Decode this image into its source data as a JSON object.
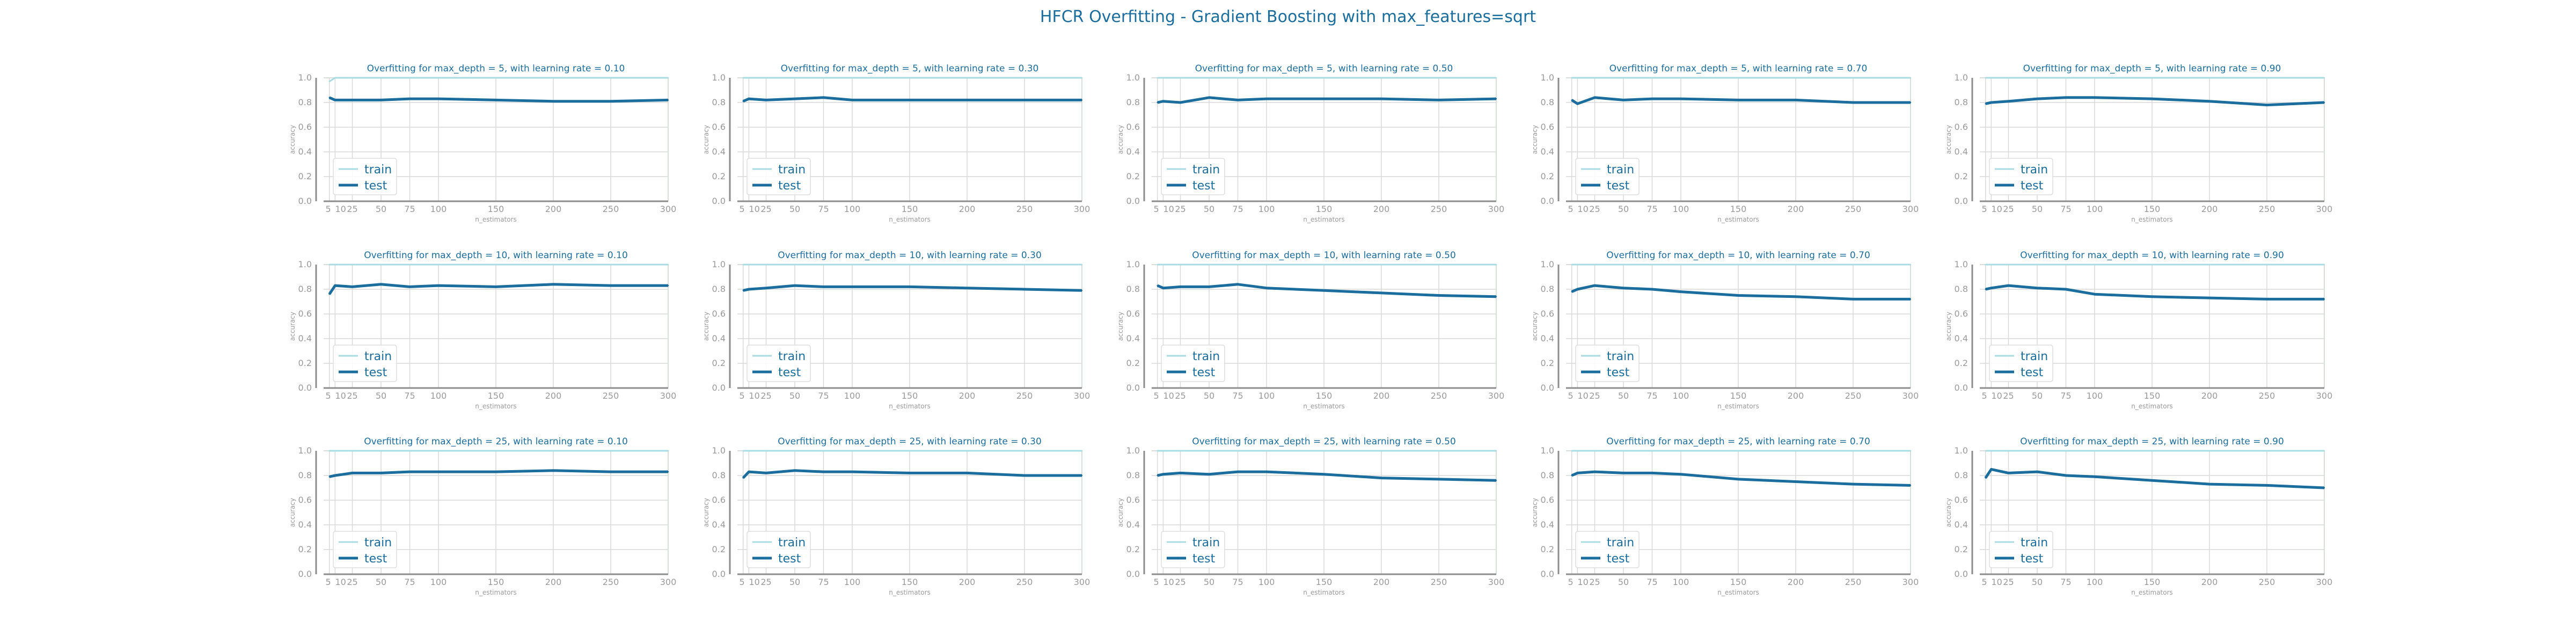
{
  "title": "HFCR Overfitting - Gradient Boosting with max_features=sqrt",
  "colors": {
    "train": "#a9dbe3",
    "test": "#1a6d9c",
    "title": "#1a6d9c",
    "grid": "#d9d9d9",
    "axis": "#8c8c8c",
    "frame": "#a8dba8"
  },
  "chart_data": [
    {
      "type": "line",
      "title": "Overfitting for max_depth = 5, with learning rate = 0.10",
      "xlabel": "n_estimators",
      "ylabel": "accuracy",
      "ylim": [
        0,
        1
      ],
      "x": [
        5,
        10,
        25,
        50,
        75,
        100,
        150,
        200,
        250,
        300
      ],
      "xticks": [
        5,
        10,
        25,
        50,
        75,
        100,
        150,
        200,
        250,
        300
      ],
      "yticks": [
        0.0,
        0.2,
        0.4,
        0.6,
        0.8,
        1.0
      ],
      "grid": true,
      "legend": "lower-left",
      "series": [
        {
          "name": "train",
          "values": [
            0.97,
            1.0,
            1.0,
            1.0,
            1.0,
            1.0,
            1.0,
            1.0,
            1.0,
            1.0
          ]
        },
        {
          "name": "test",
          "values": [
            0.84,
            0.82,
            0.82,
            0.82,
            0.83,
            0.83,
            0.82,
            0.81,
            0.81,
            0.82
          ]
        }
      ]
    },
    {
      "type": "line",
      "title": "Overfitting for max_depth = 5, with learning rate = 0.30",
      "xlabel": "n_estimators",
      "ylabel": "accuracy",
      "ylim": [
        0,
        1
      ],
      "x": [
        5,
        10,
        25,
        50,
        75,
        100,
        150,
        200,
        250,
        300
      ],
      "xticks": [
        5,
        10,
        25,
        50,
        75,
        100,
        150,
        200,
        250,
        300
      ],
      "yticks": [
        0.0,
        0.2,
        0.4,
        0.6,
        0.8,
        1.0
      ],
      "grid": true,
      "legend": "lower-left",
      "series": [
        {
          "name": "train",
          "values": [
            1.0,
            1.0,
            1.0,
            1.0,
            1.0,
            1.0,
            1.0,
            1.0,
            1.0,
            1.0
          ]
        },
        {
          "name": "test",
          "values": [
            0.81,
            0.83,
            0.82,
            0.83,
            0.84,
            0.82,
            0.82,
            0.82,
            0.82,
            0.82
          ]
        }
      ]
    },
    {
      "type": "line",
      "title": "Overfitting for max_depth = 5, with learning rate = 0.50",
      "xlabel": "n_estimators",
      "ylabel": "accuracy",
      "ylim": [
        0,
        1
      ],
      "x": [
        5,
        10,
        25,
        50,
        75,
        100,
        150,
        200,
        250,
        300
      ],
      "xticks": [
        5,
        10,
        25,
        50,
        75,
        100,
        150,
        200,
        250,
        300
      ],
      "yticks": [
        0.0,
        0.2,
        0.4,
        0.6,
        0.8,
        1.0
      ],
      "grid": true,
      "legend": "lower-left",
      "series": [
        {
          "name": "train",
          "values": [
            1.0,
            1.0,
            1.0,
            1.0,
            1.0,
            1.0,
            1.0,
            1.0,
            1.0,
            1.0
          ]
        },
        {
          "name": "test",
          "values": [
            0.8,
            0.81,
            0.8,
            0.84,
            0.82,
            0.83,
            0.83,
            0.83,
            0.82,
            0.83
          ]
        }
      ]
    },
    {
      "type": "line",
      "title": "Overfitting for max_depth = 5, with learning rate = 0.70",
      "xlabel": "n_estimators",
      "ylabel": "accuracy",
      "ylim": [
        0,
        1
      ],
      "x": [
        5,
        10,
        25,
        50,
        75,
        100,
        150,
        200,
        250,
        300
      ],
      "xticks": [
        5,
        10,
        25,
        50,
        75,
        100,
        150,
        200,
        250,
        300
      ],
      "yticks": [
        0.0,
        0.2,
        0.4,
        0.6,
        0.8,
        1.0
      ],
      "grid": true,
      "legend": "lower-left",
      "series": [
        {
          "name": "train",
          "values": [
            1.0,
            1.0,
            1.0,
            1.0,
            1.0,
            1.0,
            1.0,
            1.0,
            1.0,
            1.0
          ]
        },
        {
          "name": "test",
          "values": [
            0.82,
            0.79,
            0.84,
            0.82,
            0.83,
            0.83,
            0.82,
            0.82,
            0.8,
            0.8
          ]
        }
      ]
    },
    {
      "type": "line",
      "title": "Overfitting for max_depth = 5, with learning rate = 0.90",
      "xlabel": "n_estimators",
      "ylabel": "accuracy",
      "ylim": [
        0,
        1
      ],
      "x": [
        5,
        10,
        25,
        50,
        75,
        100,
        150,
        200,
        250,
        300
      ],
      "xticks": [
        5,
        10,
        25,
        50,
        75,
        100,
        150,
        200,
        250,
        300
      ],
      "yticks": [
        0.0,
        0.2,
        0.4,
        0.6,
        0.8,
        1.0
      ],
      "grid": true,
      "legend": "lower-left",
      "series": [
        {
          "name": "train",
          "values": [
            1.0,
            1.0,
            1.0,
            1.0,
            1.0,
            1.0,
            1.0,
            1.0,
            1.0,
            1.0
          ]
        },
        {
          "name": "test",
          "values": [
            0.79,
            0.8,
            0.81,
            0.83,
            0.84,
            0.84,
            0.83,
            0.81,
            0.78,
            0.8
          ]
        }
      ]
    },
    {
      "type": "line",
      "title": "Overfitting for max_depth = 10, with learning rate = 0.10",
      "xlabel": "n_estimators",
      "ylabel": "accuracy",
      "ylim": [
        0,
        1
      ],
      "x": [
        5,
        10,
        25,
        50,
        75,
        100,
        150,
        200,
        250,
        300
      ],
      "xticks": [
        5,
        10,
        25,
        50,
        75,
        100,
        150,
        200,
        250,
        300
      ],
      "yticks": [
        0.0,
        0.2,
        0.4,
        0.6,
        0.8,
        1.0
      ],
      "grid": true,
      "legend": "lower-left",
      "series": [
        {
          "name": "train",
          "values": [
            1.0,
            1.0,
            1.0,
            1.0,
            1.0,
            1.0,
            1.0,
            1.0,
            1.0,
            1.0
          ]
        },
        {
          "name": "test",
          "values": [
            0.76,
            0.83,
            0.82,
            0.84,
            0.82,
            0.83,
            0.82,
            0.84,
            0.83,
            0.83
          ]
        }
      ]
    },
    {
      "type": "line",
      "title": "Overfitting for max_depth = 10, with learning rate = 0.30",
      "xlabel": "n_estimators",
      "ylabel": "accuracy",
      "ylim": [
        0,
        1
      ],
      "x": [
        5,
        10,
        25,
        50,
        75,
        100,
        150,
        200,
        250,
        300
      ],
      "xticks": [
        5,
        10,
        25,
        50,
        75,
        100,
        150,
        200,
        250,
        300
      ],
      "yticks": [
        0.0,
        0.2,
        0.4,
        0.6,
        0.8,
        1.0
      ],
      "grid": true,
      "legend": "lower-left",
      "series": [
        {
          "name": "train",
          "values": [
            1.0,
            1.0,
            1.0,
            1.0,
            1.0,
            1.0,
            1.0,
            1.0,
            1.0,
            1.0
          ]
        },
        {
          "name": "test",
          "values": [
            0.79,
            0.8,
            0.81,
            0.83,
            0.82,
            0.82,
            0.82,
            0.81,
            0.8,
            0.79
          ]
        }
      ]
    },
    {
      "type": "line",
      "title": "Overfitting for max_depth = 10, with learning rate = 0.50",
      "xlabel": "n_estimators",
      "ylabel": "accuracy",
      "ylim": [
        0,
        1
      ],
      "x": [
        5,
        10,
        25,
        50,
        75,
        100,
        150,
        200,
        250,
        300
      ],
      "xticks": [
        5,
        10,
        25,
        50,
        75,
        100,
        150,
        200,
        250,
        300
      ],
      "yticks": [
        0.0,
        0.2,
        0.4,
        0.6,
        0.8,
        1.0
      ],
      "grid": true,
      "legend": "lower-left",
      "series": [
        {
          "name": "train",
          "values": [
            1.0,
            1.0,
            1.0,
            1.0,
            1.0,
            1.0,
            1.0,
            1.0,
            1.0,
            1.0
          ]
        },
        {
          "name": "test",
          "values": [
            0.83,
            0.81,
            0.82,
            0.82,
            0.84,
            0.81,
            0.79,
            0.77,
            0.75,
            0.74
          ]
        }
      ]
    },
    {
      "type": "line",
      "title": "Overfitting for max_depth = 10, with learning rate = 0.70",
      "xlabel": "n_estimators",
      "ylabel": "accuracy",
      "ylim": [
        0,
        1
      ],
      "x": [
        5,
        10,
        25,
        50,
        75,
        100,
        150,
        200,
        250,
        300
      ],
      "xticks": [
        5,
        10,
        25,
        50,
        75,
        100,
        150,
        200,
        250,
        300
      ],
      "yticks": [
        0.0,
        0.2,
        0.4,
        0.6,
        0.8,
        1.0
      ],
      "grid": true,
      "legend": "lower-left",
      "series": [
        {
          "name": "train",
          "values": [
            1.0,
            1.0,
            1.0,
            1.0,
            1.0,
            1.0,
            1.0,
            1.0,
            1.0,
            1.0
          ]
        },
        {
          "name": "test",
          "values": [
            0.78,
            0.8,
            0.83,
            0.81,
            0.8,
            0.78,
            0.75,
            0.74,
            0.72,
            0.72
          ]
        }
      ]
    },
    {
      "type": "line",
      "title": "Overfitting for max_depth = 10, with learning rate = 0.90",
      "xlabel": "n_estimators",
      "ylabel": "accuracy",
      "ylim": [
        0,
        1
      ],
      "x": [
        5,
        10,
        25,
        50,
        75,
        100,
        150,
        200,
        250,
        300
      ],
      "xticks": [
        5,
        10,
        25,
        50,
        75,
        100,
        150,
        200,
        250,
        300
      ],
      "yticks": [
        0.0,
        0.2,
        0.4,
        0.6,
        0.8,
        1.0
      ],
      "grid": true,
      "legend": "lower-left",
      "series": [
        {
          "name": "train",
          "values": [
            1.0,
            1.0,
            1.0,
            1.0,
            1.0,
            1.0,
            1.0,
            1.0,
            1.0,
            1.0
          ]
        },
        {
          "name": "test",
          "values": [
            0.8,
            0.81,
            0.83,
            0.81,
            0.8,
            0.76,
            0.74,
            0.73,
            0.72,
            0.72
          ]
        }
      ]
    },
    {
      "type": "line",
      "title": "Overfitting for max_depth = 25, with learning rate = 0.10",
      "xlabel": "n_estimators",
      "ylabel": "accuracy",
      "ylim": [
        0,
        1
      ],
      "x": [
        5,
        10,
        25,
        50,
        75,
        100,
        150,
        200,
        250,
        300
      ],
      "xticks": [
        5,
        10,
        25,
        50,
        75,
        100,
        150,
        200,
        250,
        300
      ],
      "yticks": [
        0.0,
        0.2,
        0.4,
        0.6,
        0.8,
        1.0
      ],
      "grid": true,
      "legend": "lower-left",
      "series": [
        {
          "name": "train",
          "values": [
            1.0,
            1.0,
            1.0,
            1.0,
            1.0,
            1.0,
            1.0,
            1.0,
            1.0,
            1.0
          ]
        },
        {
          "name": "test",
          "values": [
            0.79,
            0.8,
            0.82,
            0.82,
            0.83,
            0.83,
            0.83,
            0.84,
            0.83,
            0.83
          ]
        }
      ]
    },
    {
      "type": "line",
      "title": "Overfitting for max_depth = 25, with learning rate = 0.30",
      "xlabel": "n_estimators",
      "ylabel": "accuracy",
      "ylim": [
        0,
        1
      ],
      "x": [
        5,
        10,
        25,
        50,
        75,
        100,
        150,
        200,
        250,
        300
      ],
      "xticks": [
        5,
        10,
        25,
        50,
        75,
        100,
        150,
        200,
        250,
        300
      ],
      "yticks": [
        0.0,
        0.2,
        0.4,
        0.6,
        0.8,
        1.0
      ],
      "grid": true,
      "legend": "lower-left",
      "series": [
        {
          "name": "train",
          "values": [
            1.0,
            1.0,
            1.0,
            1.0,
            1.0,
            1.0,
            1.0,
            1.0,
            1.0,
            1.0
          ]
        },
        {
          "name": "test",
          "values": [
            0.78,
            0.83,
            0.82,
            0.84,
            0.83,
            0.83,
            0.82,
            0.82,
            0.8,
            0.8
          ]
        }
      ]
    },
    {
      "type": "line",
      "title": "Overfitting for max_depth = 25, with learning rate = 0.50",
      "xlabel": "n_estimators",
      "ylabel": "accuracy",
      "ylim": [
        0,
        1
      ],
      "x": [
        5,
        10,
        25,
        50,
        75,
        100,
        150,
        200,
        250,
        300
      ],
      "xticks": [
        5,
        10,
        25,
        50,
        75,
        100,
        150,
        200,
        250,
        300
      ],
      "yticks": [
        0.0,
        0.2,
        0.4,
        0.6,
        0.8,
        1.0
      ],
      "grid": true,
      "legend": "lower-left",
      "series": [
        {
          "name": "train",
          "values": [
            1.0,
            1.0,
            1.0,
            1.0,
            1.0,
            1.0,
            1.0,
            1.0,
            1.0,
            1.0
          ]
        },
        {
          "name": "test",
          "values": [
            0.8,
            0.81,
            0.82,
            0.81,
            0.83,
            0.83,
            0.81,
            0.78,
            0.77,
            0.76
          ]
        }
      ]
    },
    {
      "type": "line",
      "title": "Overfitting for max_depth = 25, with learning rate = 0.70",
      "xlabel": "n_estimators",
      "ylabel": "accuracy",
      "ylim": [
        0,
        1
      ],
      "x": [
        5,
        10,
        25,
        50,
        75,
        100,
        150,
        200,
        250,
        300
      ],
      "xticks": [
        5,
        10,
        25,
        50,
        75,
        100,
        150,
        200,
        250,
        300
      ],
      "yticks": [
        0.0,
        0.2,
        0.4,
        0.6,
        0.8,
        1.0
      ],
      "grid": true,
      "legend": "lower-left",
      "series": [
        {
          "name": "train",
          "values": [
            1.0,
            1.0,
            1.0,
            1.0,
            1.0,
            1.0,
            1.0,
            1.0,
            1.0,
            1.0
          ]
        },
        {
          "name": "test",
          "values": [
            0.8,
            0.82,
            0.83,
            0.82,
            0.82,
            0.81,
            0.77,
            0.75,
            0.73,
            0.72
          ]
        }
      ]
    },
    {
      "type": "line",
      "title": "Overfitting for max_depth = 25, with learning rate = 0.90",
      "xlabel": "n_estimators",
      "ylabel": "accuracy",
      "ylim": [
        0,
        1
      ],
      "x": [
        5,
        10,
        25,
        50,
        75,
        100,
        150,
        200,
        250,
        300
      ],
      "xticks": [
        5,
        10,
        25,
        50,
        75,
        100,
        150,
        200,
        250,
        300
      ],
      "yticks": [
        0.0,
        0.2,
        0.4,
        0.6,
        0.8,
        1.0
      ],
      "grid": true,
      "legend": "lower-left",
      "series": [
        {
          "name": "train",
          "values": [
            1.0,
            1.0,
            1.0,
            1.0,
            1.0,
            1.0,
            1.0,
            1.0,
            1.0,
            1.0
          ]
        },
        {
          "name": "test",
          "values": [
            0.78,
            0.85,
            0.82,
            0.83,
            0.8,
            0.79,
            0.76,
            0.73,
            0.72,
            0.7
          ]
        }
      ]
    }
  ]
}
